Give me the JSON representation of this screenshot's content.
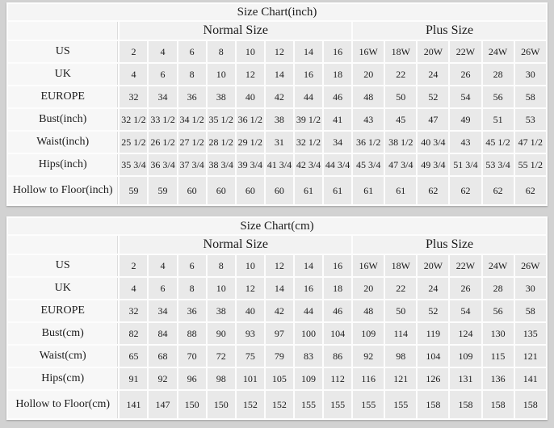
{
  "page": {
    "background": "#d2d2d2"
  },
  "colors": {
    "table_background": "#fdfdfd",
    "title_row_bg": "#f5f5f5",
    "group_header_bg": "#f2f2f2",
    "row_label_bg": "#f7f7f7",
    "data_cell_bg": "#e9e9e9",
    "text": "#1c1c1c"
  },
  "chart_data": [
    {
      "type": "table",
      "title": "Size Chart(inch)",
      "group_headers": [
        {
          "label": "Normal Size",
          "span": 8
        },
        {
          "label": "Plus Size",
          "span": 6
        }
      ],
      "rows": [
        {
          "label": "US",
          "values": [
            "2",
            "4",
            "6",
            "8",
            "10",
            "12",
            "14",
            "16",
            "16W",
            "18W",
            "20W",
            "22W",
            "24W",
            "26W"
          ]
        },
        {
          "label": "UK",
          "values": [
            "4",
            "6",
            "8",
            "10",
            "12",
            "14",
            "16",
            "18",
            "20",
            "22",
            "24",
            "26",
            "28",
            "30"
          ]
        },
        {
          "label": "EUROPE",
          "values": [
            "32",
            "34",
            "36",
            "38",
            "40",
            "42",
            "44",
            "46",
            "48",
            "50",
            "52",
            "54",
            "56",
            "58"
          ]
        },
        {
          "label": "Bust(inch)",
          "values": [
            "32 1/2",
            "33 1/2",
            "34 1/2",
            "35 1/2",
            "36 1/2",
            "38",
            "39 1/2",
            "41",
            "43",
            "45",
            "47",
            "49",
            "51",
            "53"
          ]
        },
        {
          "label": "Waist(inch)",
          "values": [
            "25 1/2",
            "26 1/2",
            "27 1/2",
            "28 1/2",
            "29 1/2",
            "31",
            "32 1/2",
            "34",
            "36 1/2",
            "38 1/2",
            "40 3/4",
            "43",
            "45 1/2",
            "47 1/2"
          ]
        },
        {
          "label": "Hips(inch)",
          "values": [
            "35 3/4",
            "36 3/4",
            "37 3/4",
            "38 3/4",
            "39 3/4",
            "41 3/4",
            "42 3/4",
            "44 3/4",
            "45 3/4",
            "47 3/4",
            "49 3/4",
            "51 3/4",
            "53 3/4",
            "55 1/2"
          ]
        },
        {
          "label": "Hollow to Floor(inch)",
          "values": [
            "59",
            "59",
            "60",
            "60",
            "60",
            "60",
            "61",
            "61",
            "61",
            "61",
            "62",
            "62",
            "62",
            "62"
          ]
        }
      ]
    },
    {
      "type": "table",
      "title": "Size Chart(cm)",
      "group_headers": [
        {
          "label": "Normal Size",
          "span": 8
        },
        {
          "label": "Plus Size",
          "span": 6
        }
      ],
      "rows": [
        {
          "label": "US",
          "values": [
            "2",
            "4",
            "6",
            "8",
            "10",
            "12",
            "14",
            "16",
            "16W",
            "18W",
            "20W",
            "22W",
            "24W",
            "26W"
          ]
        },
        {
          "label": "UK",
          "values": [
            "4",
            "6",
            "8",
            "10",
            "12",
            "14",
            "16",
            "18",
            "20",
            "22",
            "24",
            "26",
            "28",
            "30"
          ]
        },
        {
          "label": "EUROPE",
          "values": [
            "32",
            "34",
            "36",
            "38",
            "40",
            "42",
            "44",
            "46",
            "48",
            "50",
            "52",
            "54",
            "56",
            "58"
          ]
        },
        {
          "label": "Bust(cm)",
          "values": [
            "82",
            "84",
            "88",
            "90",
            "93",
            "97",
            "100",
            "104",
            "109",
            "114",
            "119",
            "124",
            "130",
            "135"
          ]
        },
        {
          "label": "Waist(cm)",
          "values": [
            "65",
            "68",
            "70",
            "72",
            "75",
            "79",
            "83",
            "86",
            "92",
            "98",
            "104",
            "109",
            "115",
            "121"
          ]
        },
        {
          "label": "Hips(cm)",
          "values": [
            "91",
            "92",
            "96",
            "98",
            "101",
            "105",
            "109",
            "112",
            "116",
            "121",
            "126",
            "131",
            "136",
            "141"
          ]
        },
        {
          "label": "Hollow to Floor(cm)",
          "values": [
            "141",
            "147",
            "150",
            "150",
            "152",
            "152",
            "155",
            "155",
            "155",
            "155",
            "158",
            "158",
            "158",
            "158"
          ]
        }
      ]
    }
  ]
}
